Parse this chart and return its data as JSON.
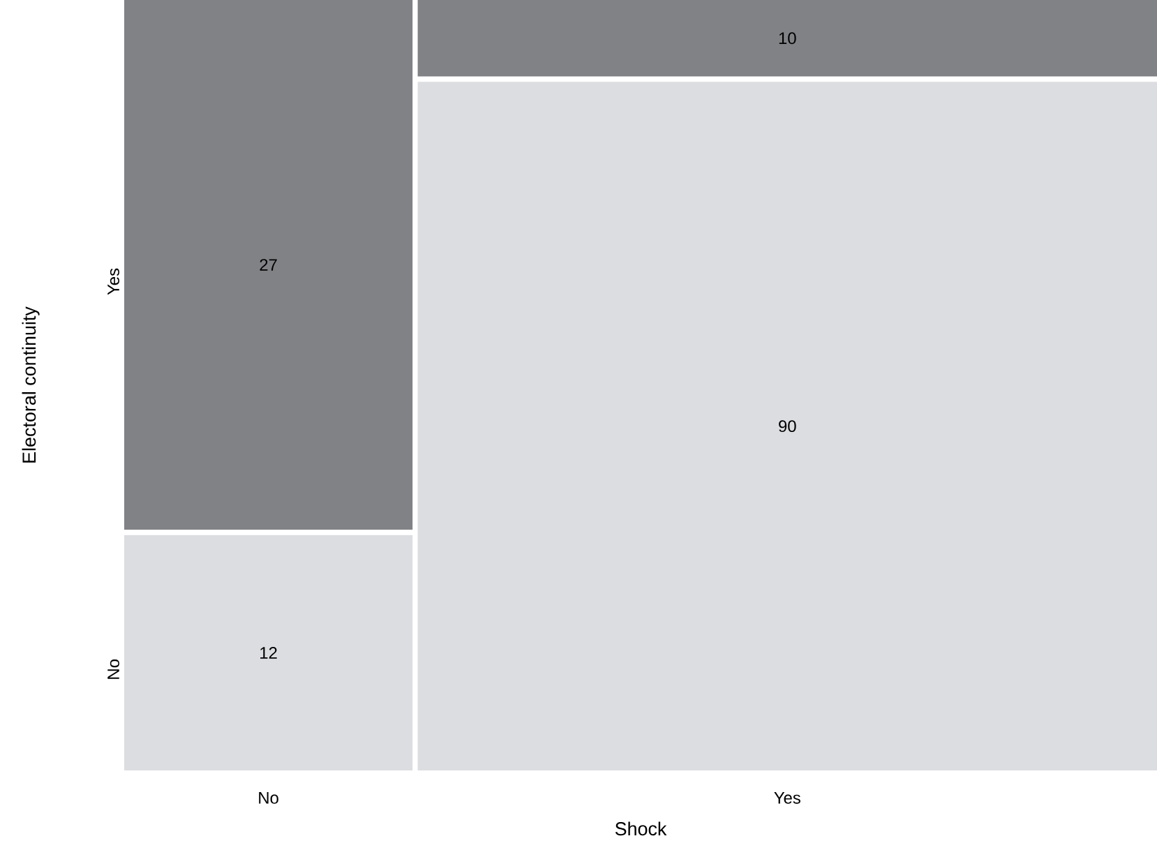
{
  "chart_data": {
    "type": "other",
    "xlabel": "Shock",
    "ylabel": "Electoral continuity",
    "categories": [
      "No",
      "Yes"
    ],
    "data_labels": true,
    "series": [
      {
        "name": "No",
        "color": "#dcdde0",
        "values": [
          12,
          90
        ]
      },
      {
        "name": "Yes",
        "color": "#818286",
        "values": [
          27,
          10
        ]
      }
    ]
  }
}
